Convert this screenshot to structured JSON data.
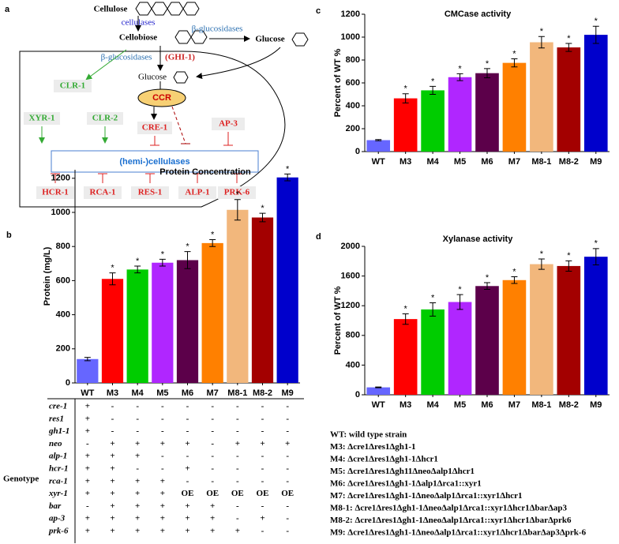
{
  "diagram": {
    "panel": "a",
    "cellulose": "Cellulose",
    "cellulases": "cellulases",
    "cellobiose": "Cellobiose",
    "bgluc_out": "β-glucosidases",
    "glucose_out": "Glucose",
    "bgluc_in": "β-glucosidases",
    "ghi": "(GHI-1)",
    "glucose_in": "Glucose",
    "ccr": "CCR",
    "clr1": "CLR-1",
    "xyr1": "XYR-1",
    "clr2": "CLR-2",
    "cre1": "CRE-1",
    "ap3": "AP-3",
    "hemi": "(hemi-)cellulases",
    "hcr1": "HCR-1",
    "rca1": "RCA-1",
    "res1": "RES-1",
    "alp1": "ALP-1",
    "prk6": "PRK-6"
  },
  "chart_data": [
    {
      "type": "bar",
      "panel": "b",
      "title": "Protein Concentration",
      "y_label": "Protein (mg/L)",
      "categories": [
        "WT",
        "M3",
        "M4",
        "M5",
        "M6",
        "M7",
        "M8-1",
        "M8-2",
        "M9"
      ],
      "values": [
        140,
        610,
        665,
        705,
        720,
        820,
        1015,
        970,
        1205
      ],
      "errors": [
        10,
        35,
        20,
        20,
        50,
        20,
        60,
        25,
        20
      ],
      "annotations": [
        null,
        "*",
        "*",
        "*",
        "*",
        "*",
        "*",
        "*",
        "*"
      ],
      "colors": [
        "#6666ff",
        "#ff0000",
        "#00cc00",
        "#b026ff",
        "#5c004a",
        "#ff8000",
        "#f2b77c",
        "#a30000",
        "#0000cc"
      ],
      "ylim": [
        0,
        1250
      ],
      "yticks": [
        0,
        200,
        400,
        600,
        800,
        1000,
        1200
      ]
    },
    {
      "type": "bar",
      "panel": "c",
      "title": "CMCase activity",
      "y_label": "Percent of WT %",
      "categories": [
        "WT",
        "M3",
        "M4",
        "M5",
        "M6",
        "M7",
        "M8-1",
        "M8-2",
        "M9"
      ],
      "values": [
        100,
        465,
        535,
        650,
        685,
        775,
        955,
        910,
        1020
      ],
      "errors": [
        5,
        40,
        35,
        30,
        40,
        35,
        50,
        35,
        75
      ],
      "annotations": [
        null,
        "*",
        "*",
        "*",
        "*",
        "*",
        "*",
        "*",
        "*"
      ],
      "colors": [
        "#6666ff",
        "#ff0000",
        "#00cc00",
        "#b026ff",
        "#5c004a",
        "#ff8000",
        "#f2b77c",
        "#a30000",
        "#0000cc"
      ],
      "ylim": [
        0,
        1200
      ],
      "yticks": [
        0,
        200,
        400,
        600,
        800,
        1000,
        1200
      ]
    },
    {
      "type": "bar",
      "panel": "d",
      "title": "Xylanase activity",
      "y_label": "Percent of WT %",
      "categories": [
        "WT",
        "M3",
        "M4",
        "M5",
        "M6",
        "M7",
        "M8-1",
        "M8-2",
        "M9"
      ],
      "values": [
        100,
        1020,
        1150,
        1250,
        1465,
        1545,
        1760,
        1735,
        1860
      ],
      "errors": [
        5,
        70,
        90,
        100,
        45,
        45,
        70,
        70,
        110
      ],
      "annotations": [
        null,
        "*",
        "*",
        "*",
        "*",
        "*",
        "*",
        "*",
        "*"
      ],
      "colors": [
        "#6666ff",
        "#ff0000",
        "#00cc00",
        "#b026ff",
        "#5c004a",
        "#ff8000",
        "#f2b77c",
        "#a30000",
        "#0000cc"
      ],
      "ylim": [
        0,
        2000
      ],
      "yticks": [
        0,
        400,
        800,
        1200,
        1600,
        2000
      ]
    }
  ],
  "genotype_table": {
    "label": "Genotype",
    "genes": [
      "cre-1",
      "res1",
      "gh1-1",
      "neo",
      "alp-1",
      "hcr-1",
      "rca-1",
      "xyr-1",
      "bar",
      "ap-3",
      "prk-6"
    ],
    "rows": [
      [
        "+",
        "-",
        "-",
        "-",
        "-",
        "-",
        "-",
        "-",
        "-"
      ],
      [
        "+",
        "-",
        "-",
        "-",
        "-",
        "-",
        "-",
        "-",
        "-"
      ],
      [
        "+",
        "-",
        "-",
        "-",
        "-",
        "-",
        "-",
        "-",
        "-"
      ],
      [
        "-",
        "+",
        "+",
        "+",
        "+",
        "-",
        "+",
        "+",
        "+"
      ],
      [
        "+",
        "+",
        "+",
        "-",
        "-",
        "-",
        "-",
        "-",
        "-"
      ],
      [
        "+",
        "+",
        "-",
        "-",
        "+",
        "-",
        "-",
        "-",
        "-"
      ],
      [
        "+",
        "+",
        "+",
        "+",
        "-",
        "-",
        "-",
        "-",
        "-"
      ],
      [
        "+",
        "+",
        "+",
        "+",
        "OE",
        "OE",
        "OE",
        "OE",
        "OE"
      ],
      [
        "-",
        "+",
        "+",
        "+",
        "+",
        "+",
        "-",
        "-",
        "-"
      ],
      [
        "+",
        "+",
        "+",
        "+",
        "+",
        "+",
        "-",
        "+",
        "-"
      ],
      [
        "+",
        "+",
        "+",
        "+",
        "+",
        "+",
        "+",
        "-",
        "-"
      ]
    ]
  },
  "strain_notes": [
    "WT: wild type strain",
    "M3: Δcre1Δres1Δgh1-1",
    "M4: Δcre1Δres1Δgh1-1Δhcr1",
    "M5: Δcre1Δres1Δgh11ΔneoΔalp1Δhcr1",
    "M6: Δcre1Δres1Δgh1-1Δalp1Δrca1::xyr1",
    "M7: Δcre1Δres1Δgh1-1ΔneoΔalp1Δrca1::xyr1Δhcr1",
    "M8-1: Δcre1Δres1Δgh1-1ΔneoΔalp1Δrca1::xyr1Δhcr1ΔbarΔap3",
    "M8-2: Δcre1Δres1Δgh1-1ΔneoΔalp1Δrca1::xyr1Δhcr1ΔbarΔprk6",
    "M9: Δcre1Δres1Δgh1-1ΔneoΔalp1Δrca1::xyr1Δhcr1ΔbarΔap3Δprk-6"
  ]
}
